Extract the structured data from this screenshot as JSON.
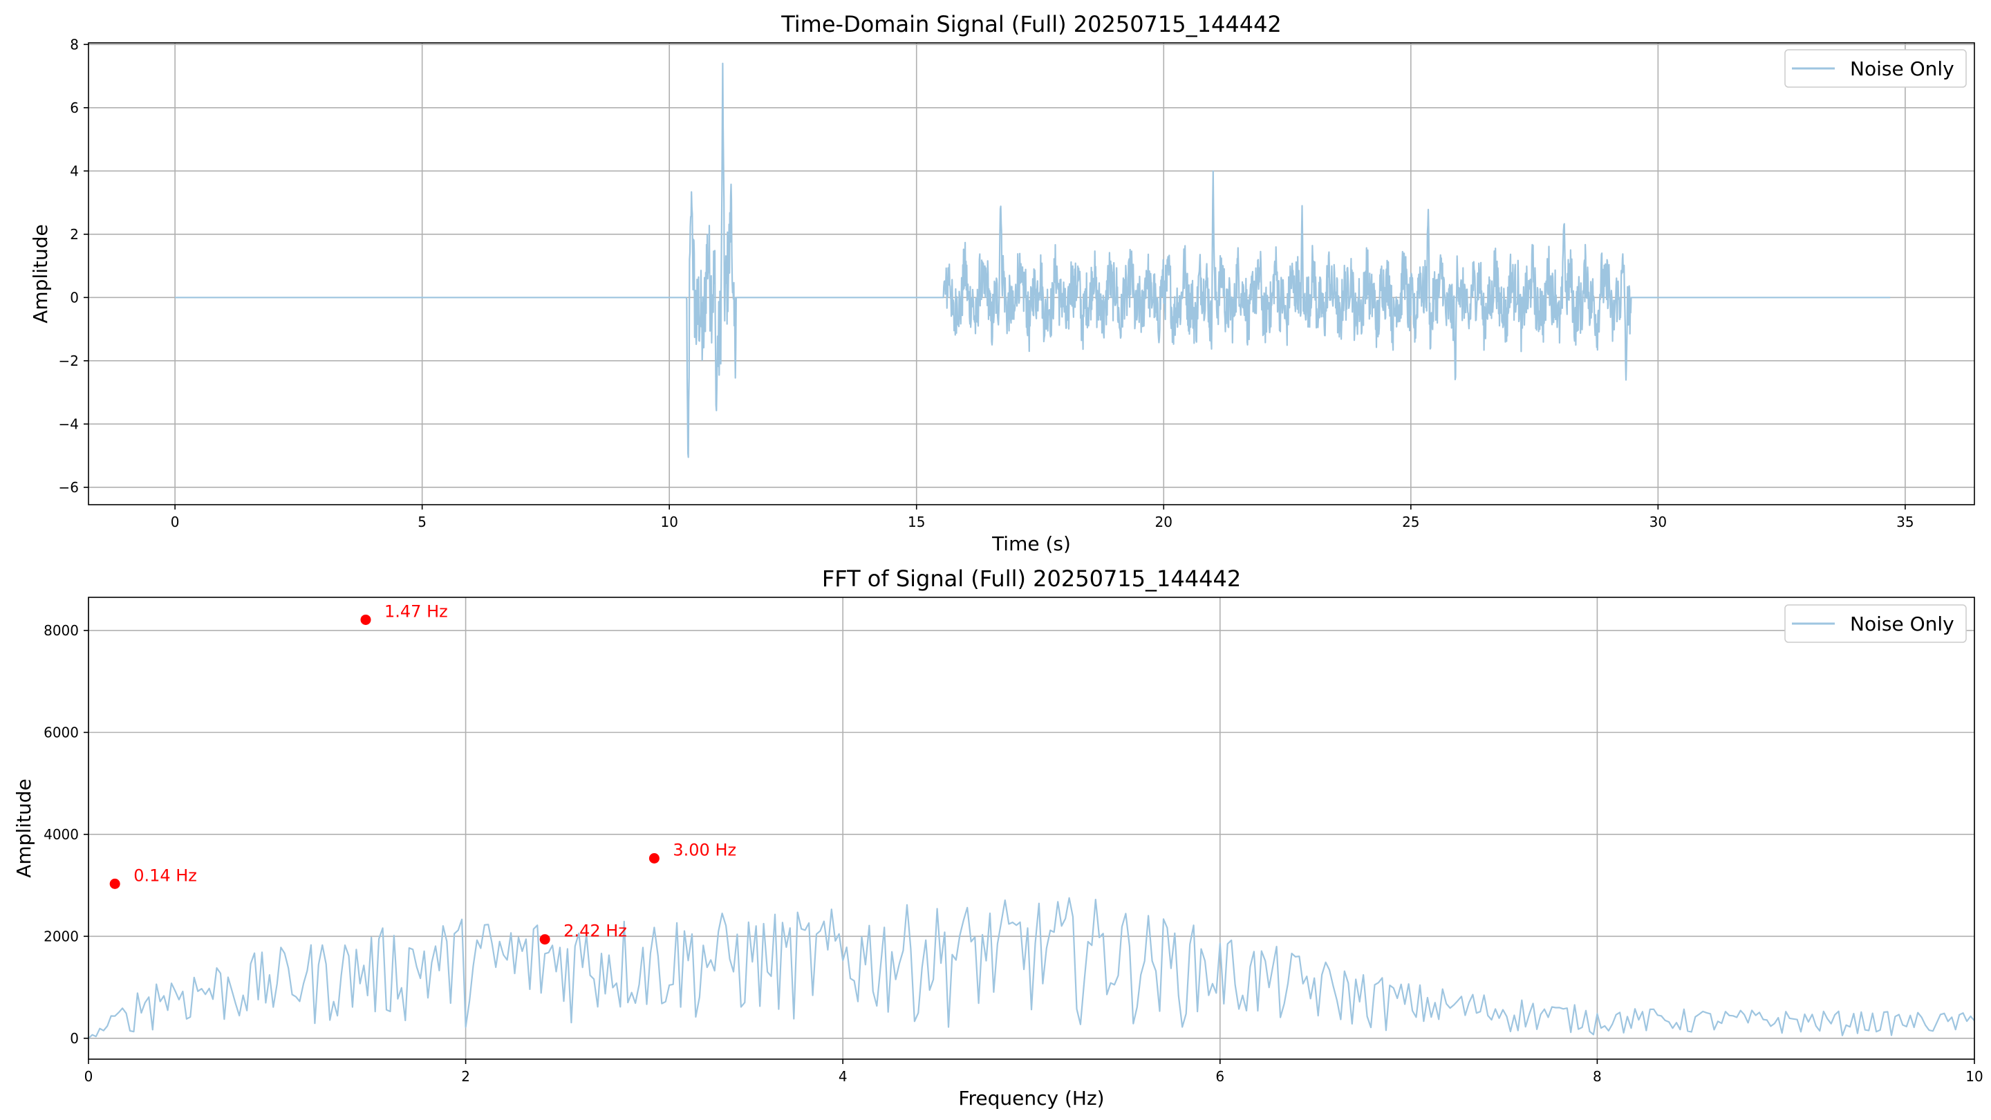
{
  "chart_data": [
    {
      "type": "line",
      "title": "Time-Domain Signal (Full) 20250715_144442",
      "xlabel": "Time (s)",
      "ylabel": "Amplitude",
      "xlim": [
        -1.75,
        36.4
      ],
      "ylim": [
        -6.55,
        8.05
      ],
      "xticks": [
        0,
        5,
        10,
        15,
        20,
        25,
        30,
        35
      ],
      "yticks": [
        -6,
        -4,
        -2,
        0,
        2,
        4,
        6,
        8
      ],
      "xtick_labels": [
        "0",
        "5",
        "10",
        "15",
        "20",
        "25",
        "30",
        "35"
      ],
      "ytick_labels": [
        "−6",
        "−4",
        "−2",
        "0",
        "2",
        "4",
        "6",
        "8"
      ],
      "grid": true,
      "legend_position": "top-right",
      "series": [
        {
          "name": "Noise Only",
          "color": "#9ec5e0",
          "signal": {
            "x_start": 0,
            "x_end": 34.7,
            "segments": [
              {
                "from": 10.35,
                "to": 11.35,
                "kind": "burst",
                "min": -5.9,
                "max": 7.4,
                "peaks": [
                  [
                    10.38,
                    -5.9
                  ],
                  [
                    10.45,
                    3.4
                  ],
                  [
                    11.08,
                    7.4
                  ],
                  [
                    10.95,
                    -3.8
                  ],
                  [
                    11.25,
                    3.8
                  ]
                ]
              },
              {
                "from": 15.55,
                "to": 29.45,
                "kind": "noise",
                "min": -2.9,
                "max": 4.0,
                "peaks": [
                  [
                    16.7,
                    3.3
                  ],
                  [
                    21.0,
                    4.0
                  ],
                  [
                    22.8,
                    2.9
                  ],
                  [
                    25.35,
                    3.0
                  ],
                  [
                    25.9,
                    -2.9
                  ],
                  [
                    28.1,
                    2.7
                  ],
                  [
                    29.35,
                    -2.8
                  ]
                ]
              }
            ]
          }
        }
      ]
    },
    {
      "type": "line",
      "title": "FFT of Signal (Full) 20250715_144442",
      "xlabel": "Frequency (Hz)",
      "ylabel": "Amplitude",
      "xlim": [
        0,
        10
      ],
      "ylim": [
        -410,
        8650
      ],
      "xticks": [
        0,
        2,
        4,
        6,
        8,
        10
      ],
      "yticks": [
        0,
        2000,
        4000,
        6000,
        8000
      ],
      "xtick_labels": [
        "0",
        "2",
        "4",
        "6",
        "8",
        "10"
      ],
      "ytick_labels": [
        "0",
        "2000",
        "4000",
        "6000",
        "8000"
      ],
      "grid": true,
      "legend_position": "top-right",
      "series": [
        {
          "name": "Noise Only",
          "color": "#9ec5e0",
          "spectrum": {
            "points": 500,
            "envelope": [
              [
                0,
                0
              ],
              [
                0.35,
                1300
              ],
              [
                1.8,
                2350
              ],
              [
                2.0,
                2400
              ],
              [
                3.7,
                2500
              ],
              [
                5.3,
                2800
              ],
              [
                6.05,
                2050
              ],
              [
                7.0,
                1100
              ],
              [
                8.0,
                600
              ],
              [
                10.0,
                500
              ]
            ]
          }
        }
      ],
      "peaks": [
        {
          "x": 0.14,
          "y": 3030,
          "label": "0.14 Hz",
          "color": "#ff0000"
        },
        {
          "x": 1.47,
          "y": 8210,
          "label": "1.47 Hz",
          "color": "#ff0000"
        },
        {
          "x": 2.42,
          "y": 1940,
          "label": "2.42 Hz",
          "color": "#ff0000"
        },
        {
          "x": 3.0,
          "y": 3530,
          "label": "3.00 Hz",
          "color": "#ff0000"
        }
      ]
    }
  ]
}
